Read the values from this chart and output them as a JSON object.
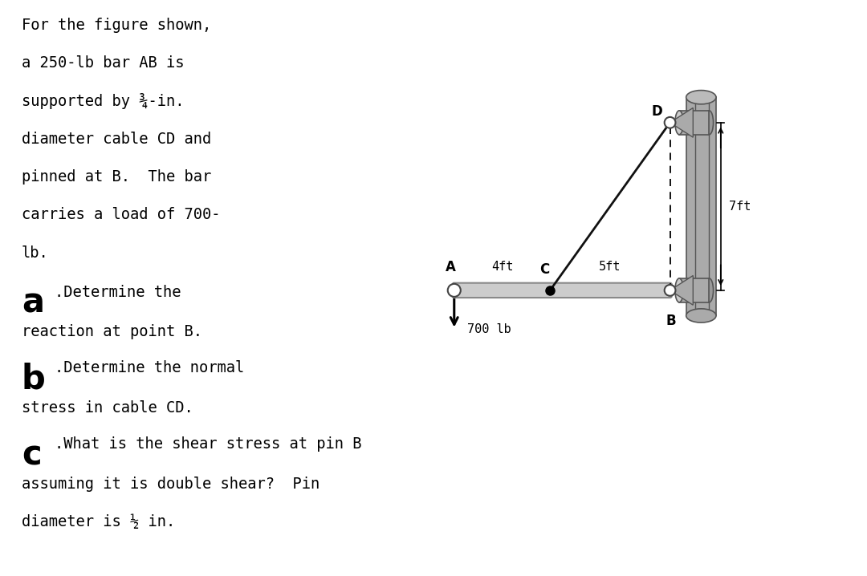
{
  "bg_color": "#ffffff",
  "text_color": "#000000",
  "problem_lines": [
    "For the figure shown,",
    "a 250-lb bar AB is",
    "supported by ¾-in.",
    "diameter cable CD and",
    "pinned at B.  The bar",
    "carries a load of 700-",
    "lb."
  ],
  "label_A": "A",
  "label_B": "B",
  "label_C": "C",
  "label_D": "D",
  "label_4ft": "4ft",
  "label_5ft": "5ft",
  "label_7ft": "7ft",
  "label_700lb": "700 lb",
  "bar_color": "#cccccc",
  "bar_edge": "#888888",
  "wall_color": "#aaaaaa",
  "wall_edge": "#555555",
  "bracket_color": "#aaaaaa",
  "cable_color": "#111111",
  "pin_color": "#ffffff",
  "pin_edge": "#444444",
  "dashed_color": "#000000",
  "arrow_color": "#000000"
}
